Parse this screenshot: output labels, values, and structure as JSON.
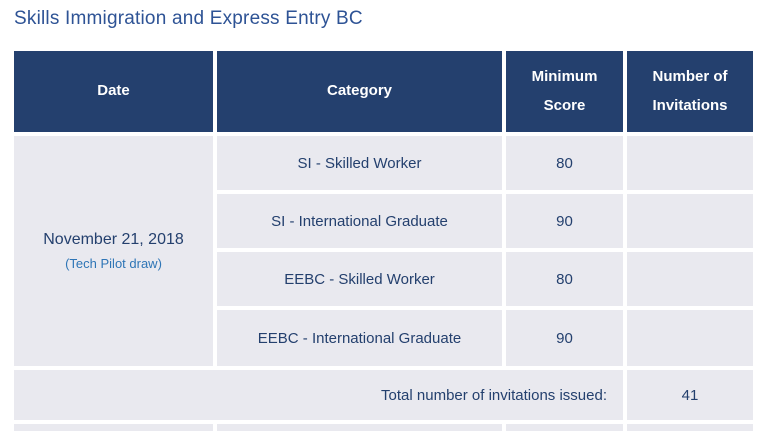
{
  "title": "Skills Immigration and Express Entry BC",
  "colors": {
    "title_text": "#2E5395",
    "header_bg": "#24406E",
    "header_text": "#FFFFFF",
    "row_bg": "#E9E9EF",
    "cell_text": "#24406E",
    "date_note_text": "#2E75B6"
  },
  "table": {
    "headers": [
      "Date",
      "Category",
      "Minimum Score",
      "Number of Invitations"
    ],
    "date": {
      "main": "November 21, 2018",
      "note": "(Tech Pilot draw)"
    },
    "rows": [
      {
        "category": "SI - Skilled Worker",
        "min_score": "80",
        "invitations": ""
      },
      {
        "category": "SI - International Graduate",
        "min_score": "90",
        "invitations": ""
      },
      {
        "category": "EEBC - Skilled Worker",
        "min_score": "80",
        "invitations": ""
      },
      {
        "category": "EEBC - International Graduate",
        "min_score": "90",
        "invitations": ""
      }
    ],
    "total": {
      "label": "Total number of invitations issued:",
      "value": "41"
    }
  }
}
